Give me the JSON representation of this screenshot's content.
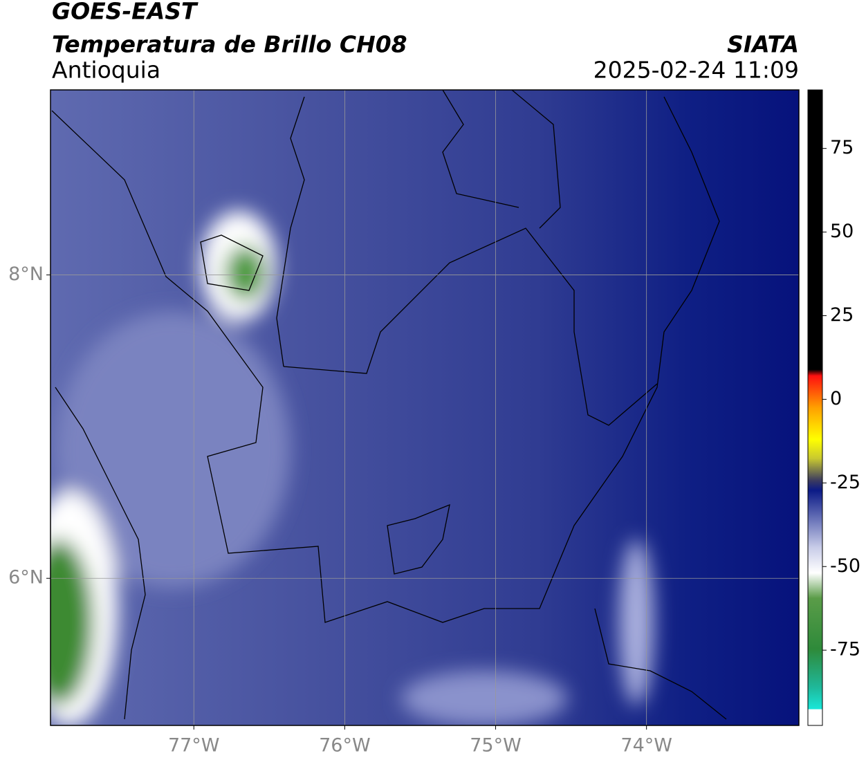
{
  "title": "GOES-EAST",
  "subtitle": "Temperatura de Brillo CH08",
  "region": "Antioquia",
  "source": "SIATA",
  "datetime": "2025-02-24 11:09",
  "map": {
    "xlim": [
      -77.95,
      -72.99
    ],
    "ylim": [
      5.03,
      9.22
    ],
    "xticks": [
      {
        "value": -77,
        "label": "77°W"
      },
      {
        "value": -76,
        "label": "76°W"
      },
      {
        "value": -75,
        "label": "75°W"
      },
      {
        "value": -74,
        "label": "74°W"
      }
    ],
    "yticks": [
      {
        "value": 8,
        "label": "8°N"
      },
      {
        "value": 6,
        "label": "6°N"
      }
    ],
    "grid": true
  },
  "colorbar": {
    "lim": [
      -97.5,
      92.5
    ],
    "ticks": [
      75,
      50,
      25,
      0,
      -25,
      -50,
      -75
    ]
  }
}
